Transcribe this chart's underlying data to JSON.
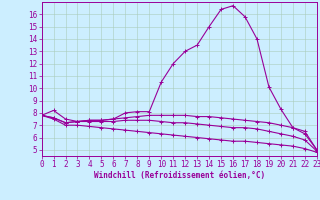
{
  "xlabel": "Windchill (Refroidissement éolien,°C)",
  "x": [
    0,
    1,
    2,
    3,
    4,
    5,
    6,
    7,
    8,
    9,
    10,
    11,
    12,
    13,
    14,
    15,
    16,
    17,
    18,
    19,
    20,
    21,
    22,
    23
  ],
  "line1": [
    7.8,
    8.2,
    7.5,
    7.3,
    7.4,
    7.4,
    7.5,
    8.0,
    8.1,
    8.1,
    10.5,
    12.0,
    13.0,
    13.5,
    15.0,
    16.4,
    16.7,
    15.8,
    14.0,
    10.1,
    8.3,
    6.8,
    6.3,
    5.0
  ],
  "line2": [
    7.8,
    7.6,
    7.2,
    7.3,
    7.4,
    7.4,
    7.5,
    7.6,
    7.7,
    7.8,
    7.8,
    7.8,
    7.8,
    7.7,
    7.7,
    7.6,
    7.5,
    7.4,
    7.3,
    7.2,
    7.0,
    6.8,
    6.5,
    5.0
  ],
  "line3": [
    7.8,
    7.6,
    7.2,
    7.3,
    7.3,
    7.3,
    7.3,
    7.4,
    7.4,
    7.4,
    7.3,
    7.2,
    7.2,
    7.1,
    7.0,
    6.9,
    6.8,
    6.8,
    6.7,
    6.5,
    6.3,
    6.1,
    5.8,
    4.9
  ],
  "line4": [
    7.8,
    7.5,
    7.0,
    7.0,
    6.9,
    6.8,
    6.7,
    6.6,
    6.5,
    6.4,
    6.3,
    6.2,
    6.1,
    6.0,
    5.9,
    5.8,
    5.7,
    5.7,
    5.6,
    5.5,
    5.4,
    5.3,
    5.1,
    4.8
  ],
  "line_color": "#990099",
  "bg_color": "#cceeff",
  "grid_color": "#aaccbb",
  "ylim": [
    4.5,
    17.0
  ],
  "xlim": [
    0,
    23
  ],
  "yticks": [
    5,
    6,
    7,
    8,
    9,
    10,
    11,
    12,
    13,
    14,
    15,
    16
  ],
  "xticks": [
    0,
    1,
    2,
    3,
    4,
    5,
    6,
    7,
    8,
    9,
    10,
    11,
    12,
    13,
    14,
    15,
    16,
    17,
    18,
    19,
    20,
    21,
    22,
    23
  ],
  "tick_fontsize": 5.5,
  "xlabel_fontsize": 5.5
}
